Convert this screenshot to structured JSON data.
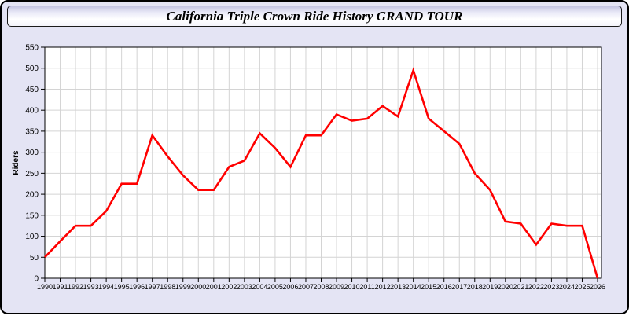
{
  "window": {
    "title": "California Triple Crown Ride History GRAND TOUR",
    "background_color": "#e4e4f4",
    "frame_border_color": "#000000"
  },
  "chart_data": {
    "type": "line",
    "title": "California Triple Crown Ride History GRAND TOUR",
    "xlabel": "",
    "ylabel": "Riders",
    "x": [
      1990,
      1991,
      1992,
      1993,
      1994,
      1995,
      1996,
      1997,
      1998,
      1999,
      2000,
      2001,
      2002,
      2003,
      2004,
      2005,
      2006,
      2007,
      2008,
      2009,
      2010,
      2011,
      2012,
      2013,
      2014,
      2015,
      2016,
      2017,
      2018,
      2019,
      2020,
      2021,
      2022,
      2023,
      2024,
      2025,
      2026
    ],
    "series": [
      {
        "name": "Riders",
        "color": "#ff0000",
        "values": [
          50,
          88,
          125,
          125,
          160,
          225,
          225,
          340,
          290,
          245,
          210,
          210,
          265,
          280,
          345,
          310,
          265,
          340,
          340,
          390,
          375,
          380,
          410,
          385,
          495,
          380,
          350,
          320,
          250,
          210,
          135,
          130,
          80,
          130,
          125,
          125,
          0
        ]
      }
    ],
    "ylim": [
      0,
      550
    ],
    "ytick_step": 50,
    "grid": true,
    "legend": false,
    "plot_background": "#ffffff",
    "grid_color": "#d4d4d4",
    "axis_color": "#000000",
    "tick_label_color": "#000000"
  }
}
